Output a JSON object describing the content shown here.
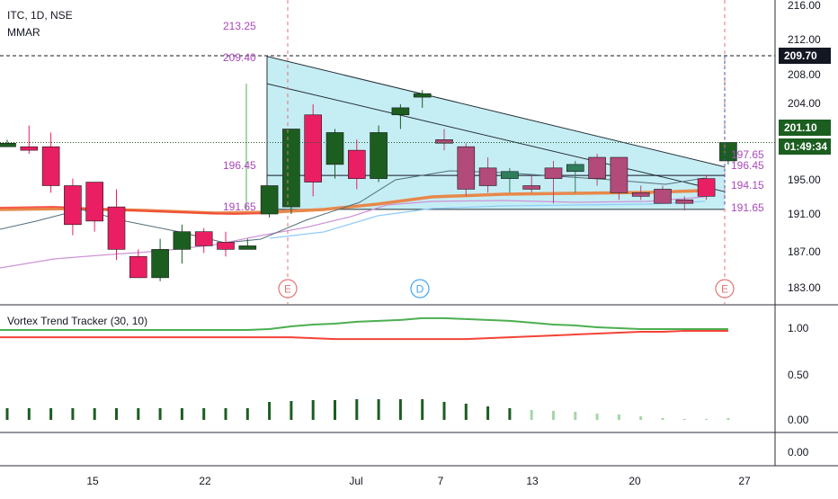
{
  "header": {
    "symbol": "ITC, 1D, NSE",
    "study": "MMAR"
  },
  "price_axis": {
    "ticks": [
      "216.00",
      "212.00",
      "208.00",
      "204.00",
      "201.10",
      "197.65",
      "196.45",
      "194.15",
      "191.65",
      "191.00",
      "187.00",
      "183.00"
    ],
    "badges": {
      "last_price": "201.10",
      "countdown": "01:49:34",
      "line_level": "209.70"
    },
    "labels": [
      "213.25",
      "209.40",
      "196.45",
      "191.65"
    ]
  },
  "time_axis": {
    "ticks": [
      "15",
      "22",
      "Jul",
      "7",
      "13",
      "20",
      "27"
    ]
  },
  "events": [
    {
      "letter": "E",
      "kind": "earnings",
      "color": "#e57373"
    },
    {
      "letter": "D",
      "kind": "dividend",
      "color": "#42a5f5"
    },
    {
      "letter": "E",
      "kind": "earnings",
      "color": "#e57373"
    }
  ],
  "indicator": {
    "title": "Vortex Trend Tracker (30, 10)",
    "ticks": [
      "1.00",
      "0.50",
      "0.00"
    ],
    "lower_tick": "0.00"
  },
  "colors": {
    "up": "#1b5e20",
    "down": "#e91e63",
    "up_faded": "#2e7d5b",
    "down_faded": "#b24a7a",
    "channel_fill": "#7fd8e6",
    "ema_orange": "#e8884a",
    "ema_red": "#f44336",
    "vortex_green": "#4caf50",
    "vortex_red": "#f44336",
    "label_purple": "#ab47bc"
  },
  "chart_data": {
    "type": "candlestick",
    "symbol": "ITC",
    "interval": "1D",
    "ylim": [
      181.5,
      217
    ],
    "x": [
      "Jun 9",
      "Jun 10",
      "Jun 11",
      "Jun 12",
      "Jun 15",
      "Jun 16",
      "Jun 17",
      "Jun 18",
      "Jun 19",
      "Jun 22",
      "Jun 23",
      "Jun 24",
      "Jun 25",
      "Jun 26",
      "Jun 29",
      "Jun 30",
      "Jul 1",
      "Jul 2",
      "Jul 3",
      "Jul 6",
      "Jul 7",
      "Jul 8",
      "Jul 9",
      "Jul 10",
      "Jul 13",
      "Jul 14",
      "Jul 15",
      "Jul 16",
      "Jul 17",
      "Jul 20",
      "Jul 21",
      "Jul 22",
      "Jul 23",
      "Jul 24"
    ],
    "ohlc": [
      [
        200.5,
        201.5,
        200.5,
        201.0
      ],
      [
        200.5,
        203.5,
        199.5,
        200.0
      ],
      [
        200.5,
        202.5,
        194.0,
        195.0
      ],
      [
        195.0,
        196.0,
        188.0,
        189.5
      ],
      [
        195.5,
        195.5,
        188.5,
        190.0
      ],
      [
        192.0,
        194.5,
        184.5,
        186.0
      ],
      [
        185.0,
        186.0,
        182.0,
        182.0
      ],
      [
        182.0,
        187.5,
        181.5,
        186.0
      ],
      [
        186.0,
        189.5,
        184.0,
        188.5
      ],
      [
        188.5,
        189.0,
        185.5,
        186.5
      ],
      [
        187.0,
        188.5,
        185.0,
        186.0
      ],
      [
        186.0,
        187.5,
        186.0,
        186.5
      ],
      [
        191.0,
        195.0,
        190.5,
        195.0
      ],
      [
        192.0,
        203.0,
        191.0,
        203.0
      ],
      [
        205.0,
        206.5,
        193.5,
        195.5
      ],
      [
        198.0,
        203.0,
        196.0,
        202.5
      ],
      [
        200.0,
        201.5,
        194.5,
        196.0
      ],
      [
        196.0,
        203.5,
        195.5,
        202.5
      ],
      [
        205.0,
        206.5,
        203.0,
        206.0
      ],
      [
        207.5,
        208.5,
        206.0,
        208.0
      ],
      [
        201.5,
        203.0,
        200.0,
        201.0
      ],
      [
        200.5,
        201.0,
        193.5,
        194.5
      ],
      [
        197.5,
        199.0,
        194.0,
        195.0
      ],
      [
        196.0,
        197.5,
        194.0,
        197.0
      ],
      [
        195.0,
        196.5,
        194.0,
        194.5
      ],
      [
        197.5,
        198.5,
        192.5,
        196.0
      ],
      [
        197.0,
        198.5,
        194.0,
        198.0
      ],
      [
        199.0,
        199.5,
        195.0,
        196.0
      ],
      [
        199.0,
        199.0,
        193.0,
        194.0
      ],
      [
        194.0,
        195.0,
        193.0,
        193.5
      ],
      [
        194.5,
        195.0,
        192.5,
        192.5
      ],
      [
        193.0,
        193.5,
        191.5,
        192.5
      ],
      [
        196.0,
        196.5,
        193.0,
        193.5
      ],
      [
        198.5,
        201.1,
        198.0,
        201.1
      ]
    ],
    "price_lines": {
      "last": 201.1,
      "dashed": 209.7,
      "support": 191.65,
      "mid": 196.45
    },
    "channel": {
      "start_index": 12,
      "end_index": 33,
      "top": [
        213.25,
        197.65
      ],
      "inner": [
        209.4,
        194.15
      ],
      "bottom": 191.65
    },
    "indicator_series": {
      "vi_plus": [
        0.99,
        0.99,
        0.99,
        0.99,
        0.99,
        0.99,
        0.99,
        0.99,
        0.99,
        0.99,
        0.99,
        0.99,
        1.0,
        1.03,
        1.05,
        1.06,
        1.08,
        1.09,
        1.1,
        1.12,
        1.12,
        1.11,
        1.1,
        1.09,
        1.07,
        1.05,
        1.04,
        1.02,
        1.01,
        1.0,
        1.0,
        1.0,
        1.0,
        1.0
      ],
      "vi_minus": [
        0.91,
        0.91,
        0.91,
        0.91,
        0.91,
        0.91,
        0.91,
        0.91,
        0.91,
        0.91,
        0.91,
        0.91,
        0.91,
        0.91,
        0.9,
        0.89,
        0.89,
        0.89,
        0.89,
        0.89,
        0.89,
        0.89,
        0.9,
        0.91,
        0.92,
        0.93,
        0.94,
        0.95,
        0.96,
        0.97,
        0.97,
        0.98,
        0.98,
        0.98
      ],
      "hist": [
        0.13,
        0.13,
        0.13,
        0.13,
        0.13,
        0.13,
        0.13,
        0.13,
        0.13,
        0.13,
        0.13,
        0.13,
        0.2,
        0.21,
        0.22,
        0.22,
        0.23,
        0.23,
        0.23,
        0.23,
        0.2,
        0.18,
        0.15,
        0.13,
        0.11,
        0.1,
        0.09,
        0.07,
        0.06,
        0.04,
        0.02,
        0.01,
        0.01,
        0.02
      ]
    }
  }
}
